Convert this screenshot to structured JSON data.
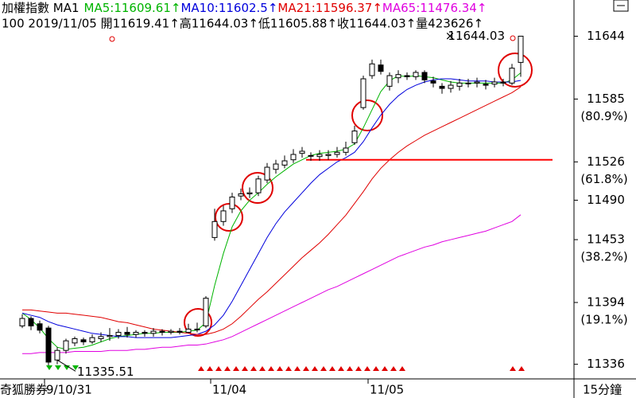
{
  "chart_data": {
    "type": "candlestick",
    "title": "加權指數 MA1",
    "info_line": "100 2019/11/05 開11619.41↑高11644.03↑低11605.88↑收11644.03↑量423626↑",
    "ylim": [
      11323,
      11678
    ],
    "yticks": [
      11644,
      11585,
      11526,
      11490,
      11453,
      11394,
      11336
    ],
    "fib_labels": [
      "(80.9%)",
      "(61.8%)",
      "(38.2%)",
      "(19.1%)"
    ],
    "categories": [
      null,
      null,
      null,
      "9/10/31",
      null,
      null,
      null,
      null,
      null,
      null,
      null,
      null,
      null,
      null,
      null,
      null,
      null,
      null,
      null,
      null,
      null,
      null,
      "11/04",
      null,
      null,
      null,
      null,
      null,
      null,
      null,
      null,
      null,
      null,
      null,
      null,
      null,
      null,
      null,
      null,
      null,
      "11/05",
      null,
      null,
      null,
      null,
      null,
      null,
      null,
      null,
      null,
      null,
      null,
      null,
      null,
      null,
      null,
      null,
      null
    ],
    "footer_left": "奇狐勝券",
    "footer_right": "15分鐘",
    "up_color": "#ffffff",
    "down_color": "#000000",
    "ohlc": [
      [
        11372,
        11383,
        11370,
        11379
      ],
      [
        11379,
        11381,
        11368,
        11372
      ],
      [
        11374,
        11377,
        11365,
        11368
      ],
      [
        11370,
        11372,
        11335,
        11338
      ],
      [
        11340,
        11352,
        11336,
        11349
      ],
      [
        11349,
        11360,
        11346,
        11358
      ],
      [
        11356,
        11362,
        11353,
        11360
      ],
      [
        11359,
        11361,
        11354,
        11357
      ],
      [
        11357,
        11364,
        11355,
        11361
      ],
      [
        11360,
        11366,
        11357,
        11362
      ],
      [
        11362,
        11370,
        11358,
        11363
      ],
      [
        11363,
        11369,
        11360,
        11366
      ],
      [
        11366,
        11371,
        11361,
        11364
      ],
      [
        11364,
        11368,
        11361,
        11366
      ],
      [
        11366,
        11368,
        11362,
        11365
      ],
      [
        11365,
        11370,
        11362,
        11367
      ],
      [
        11367,
        11369,
        11363,
        11366
      ],
      [
        11366,
        11369,
        11364,
        11367
      ],
      [
        11367,
        11370,
        11364,
        11366
      ],
      [
        11366,
        11374,
        11365,
        11369
      ],
      [
        11369,
        11375,
        11366,
        11369
      ],
      [
        11372,
        11400,
        11370,
        11398
      ],
      [
        11455,
        11482,
        11452,
        11470
      ],
      [
        11470,
        11485,
        11466,
        11480
      ],
      [
        11482,
        11497,
        11478,
        11493
      ],
      [
        11494,
        11501,
        11490,
        11496
      ],
      [
        11496,
        11502,
        11492,
        11497
      ],
      [
        11497,
        11513,
        11494,
        11510
      ],
      [
        11509,
        11525,
        11506,
        11521
      ],
      [
        11519,
        11528,
        11515,
        11524
      ],
      [
        11523,
        11532,
        11520,
        11527
      ],
      [
        11528,
        11538,
        11525,
        11533
      ],
      [
        11534,
        11540,
        11530,
        11536
      ],
      [
        11532,
        11535,
        11527,
        11532
      ],
      [
        11531,
        11537,
        11527,
        11533
      ],
      [
        11532,
        11537,
        11528,
        11533
      ],
      [
        11533,
        11540,
        11530,
        11535
      ],
      [
        11535,
        11545,
        11532,
        11539
      ],
      [
        11544,
        11560,
        11542,
        11555
      ],
      [
        11577,
        11607,
        11575,
        11604
      ],
      [
        11607,
        11622,
        11604,
        11618
      ],
      [
        11617,
        11622,
        11608,
        11611
      ],
      [
        11597,
        11610,
        11593,
        11607
      ],
      [
        11605,
        11612,
        11600,
        11608
      ],
      [
        11607,
        11610,
        11603,
        11606
      ],
      [
        11606,
        11612,
        11603,
        11610
      ],
      [
        11610,
        11612,
        11600,
        11603
      ],
      [
        11602,
        11606,
        11596,
        11600
      ],
      [
        11597,
        11600,
        11590,
        11595
      ],
      [
        11595,
        11602,
        11591,
        11598
      ],
      [
        11597,
        11604,
        11593,
        11600
      ],
      [
        11600,
        11604,
        11596,
        11600
      ],
      [
        11600,
        11605,
        11596,
        11601
      ],
      [
        11599,
        11603,
        11594,
        11598
      ],
      [
        11599,
        11605,
        11596,
        11601
      ],
      [
        11601,
        11604,
        11597,
        11600
      ],
      [
        11600,
        11618,
        11598,
        11614
      ],
      [
        11619.41,
        11644.03,
        11605.88,
        11644.03
      ]
    ],
    "series": [
      {
        "name": "MA5",
        "label": ":11609.61↑",
        "color": "#00b400",
        "values": [
          11384,
          11378,
          11370,
          11360,
          11352,
          11350,
          11351,
          11352,
          11354,
          11357,
          11360,
          11362,
          11363,
          11364,
          11365,
          11365,
          11366,
          11366,
          11366,
          11367,
          11368,
          11375,
          11410,
          11440,
          11465,
          11480,
          11490,
          11497,
          11505,
          11512,
          11518,
          11524,
          11528,
          11532,
          11534,
          11535,
          11536,
          11538,
          11543,
          11558,
          11575,
          11592,
          11602,
          11607,
          11606,
          11607,
          11606,
          11605,
          11603,
          11601,
          11600,
          11600,
          11600,
          11600,
          11600,
          11600,
          11603,
          11609.61
        ]
      },
      {
        "name": "MA10",
        "label": ":11602.5↑",
        "color": "#0000dc",
        "values": [
          11384,
          11382,
          11380,
          11376,
          11373,
          11371,
          11369,
          11367,
          11365,
          11364,
          11363,
          11362,
          11362,
          11361,
          11361,
          11361,
          11361,
          11361,
          11362,
          11363,
          11364,
          11367,
          11373,
          11382,
          11395,
          11410,
          11425,
          11440,
          11455,
          11468,
          11479,
          11488,
          11497,
          11506,
          11514,
          11520,
          11526,
          11530,
          11535,
          11545,
          11558,
          11570,
          11580,
          11588,
          11594,
          11598,
          11601,
          11603,
          11604,
          11604,
          11603,
          11602,
          11602,
          11602,
          11601,
          11601,
          11601,
          11602.5
        ]
      },
      {
        "name": "MA21",
        "label": ":11596.37↑",
        "color": "#e00000",
        "values": [
          11387,
          11387,
          11386,
          11385,
          11384,
          11384,
          11383,
          11382,
          11381,
          11380,
          11378,
          11376,
          11375,
          11373,
          11371,
          11369,
          11368,
          11367,
          11366,
          11365,
          11364,
          11364,
          11366,
          11369,
          11374,
          11381,
          11389,
          11397,
          11404,
          11412,
          11420,
          11428,
          11436,
          11443,
          11450,
          11458,
          11467,
          11476,
          11487,
          11498,
          11510,
          11520,
          11528,
          11535,
          11541,
          11546,
          11551,
          11555,
          11559,
          11563,
          11567,
          11571,
          11575,
          11579,
          11583,
          11587,
          11591,
          11596.37
        ]
      },
      {
        "name": "MA65",
        "label": ":11476.34↑",
        "color": "#e000e0",
        "values": [
          11346,
          11346,
          11347,
          11347,
          11347,
          11347,
          11348,
          11348,
          11348,
          11348,
          11349,
          11349,
          11349,
          11350,
          11350,
          11351,
          11352,
          11352,
          11353,
          11354,
          11354,
          11355,
          11357,
          11359,
          11362,
          11366,
          11370,
          11374,
          11378,
          11382,
          11386,
          11390,
          11394,
          11398,
          11402,
          11406,
          11409,
          11413,
          11417,
          11421,
          11425,
          11429,
          11433,
          11437,
          11440,
          11443,
          11446,
          11448,
          11451,
          11453,
          11455,
          11457,
          11459,
          11461,
          11464,
          11467,
          11470,
          11476.34
        ]
      }
    ],
    "hline": {
      "value": 11528,
      "color": "#ff0000"
    },
    "annotations": [
      {
        "text": "11644.03",
        "value": 11644.03
      },
      {
        "text": "11335.51",
        "value": 11335.51
      }
    ]
  }
}
